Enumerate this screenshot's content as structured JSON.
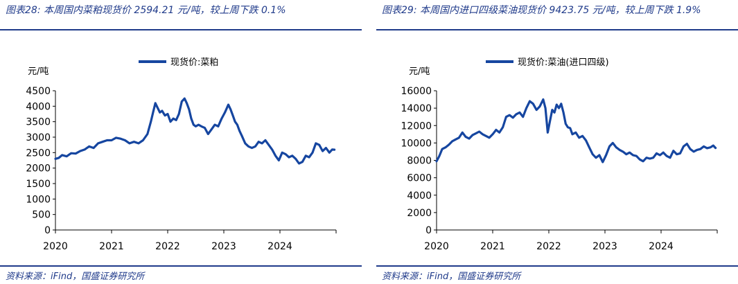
{
  "chart_data": [
    {
      "type": "line",
      "figure_title": "图表28: 本周国内菜粕现货价 2594.21 元/吨，较上周下跌 0.1%",
      "source": "资料来源：iFind，国盛证券研究所",
      "unit_label": "元/吨",
      "legend": [
        "现货价:菜粕"
      ],
      "line_color": "#1646a0",
      "x_ticks": [
        "2020",
        "2021",
        "2022",
        "2023",
        "2024"
      ],
      "xlim": [
        2020.0,
        2025.0
      ],
      "ylim": [
        0,
        4500
      ],
      "y_ticks": [
        "0",
        "500",
        "1000",
        "1500",
        "2000",
        "2500",
        "3000",
        "3500",
        "4000",
        "4500"
      ],
      "series": [
        {
          "name": "现货价:菜粕",
          "x": [
            2020.0,
            2020.06,
            2020.12,
            2020.2,
            2020.28,
            2020.36,
            2020.44,
            2020.52,
            2020.6,
            2020.68,
            2020.76,
            2020.84,
            2020.92,
            2021.0,
            2021.08,
            2021.16,
            2021.24,
            2021.32,
            2021.4,
            2021.48,
            2021.56,
            2021.64,
            2021.7,
            2021.74,
            2021.78,
            2021.82,
            2021.86,
            2021.9,
            2021.95,
            2022.0,
            2022.05,
            2022.1,
            2022.15,
            2022.2,
            2022.25,
            2022.3,
            2022.34,
            2022.38,
            2022.42,
            2022.46,
            2022.5,
            2022.55,
            2022.6,
            2022.66,
            2022.72,
            2022.78,
            2022.84,
            2022.9,
            2022.96,
            2023.02,
            2023.08,
            2023.12,
            2023.16,
            2023.2,
            2023.24,
            2023.28,
            2023.32,
            2023.38,
            2023.44,
            2023.5,
            2023.56,
            2023.62,
            2023.68,
            2023.74,
            2023.8,
            2023.86,
            2023.92,
            2023.98,
            2024.04,
            2024.1,
            2024.16,
            2024.22,
            2024.28,
            2024.34,
            2024.4,
            2024.46,
            2024.52,
            2024.58,
            2024.64,
            2024.7,
            2024.76,
            2024.82,
            2024.88,
            2024.93,
            2024.97
          ],
          "y": [
            2300,
            2330,
            2420,
            2380,
            2480,
            2470,
            2550,
            2600,
            2700,
            2650,
            2800,
            2850,
            2900,
            2900,
            2980,
            2950,
            2900,
            2800,
            2850,
            2800,
            2900,
            3100,
            3500,
            3800,
            4100,
            3950,
            3800,
            3850,
            3700,
            3750,
            3500,
            3600,
            3550,
            3750,
            4150,
            4250,
            4100,
            3900,
            3600,
            3400,
            3350,
            3400,
            3350,
            3300,
            3100,
            3250,
            3400,
            3350,
            3600,
            3800,
            4050,
            3900,
            3700,
            3500,
            3400,
            3200,
            3050,
            2800,
            2700,
            2650,
            2700,
            2850,
            2800,
            2900,
            2750,
            2600,
            2400,
            2250,
            2500,
            2450,
            2350,
            2400,
            2300,
            2150,
            2200,
            2400,
            2350,
            2500,
            2800,
            2750,
            2550,
            2650,
            2500,
            2600,
            2594
          ]
        }
      ]
    },
    {
      "type": "line",
      "figure_title": "图表29: 本周国内进口四级菜油现货价 9423.75 元/吨，较上周下跌 1.9%",
      "source": "资料来源：iFind，国盛证券研究所",
      "unit_label": "元/吨",
      "legend": [
        "现货价:菜油(进口四级)"
      ],
      "line_color": "#1646a0",
      "x_ticks": [
        "2020",
        "2021",
        "2022",
        "2023",
        "2024"
      ],
      "xlim": [
        2020.0,
        2025.0
      ],
      "ylim": [
        0,
        16000
      ],
      "y_ticks": [
        "0",
        "2000",
        "4000",
        "6000",
        "8000",
        "10000",
        "12000",
        "14000",
        "16000"
      ],
      "series": [
        {
          "name": "现货价:菜油(进口四级)",
          "x": [
            2020.0,
            2020.05,
            2020.1,
            2020.16,
            2020.22,
            2020.28,
            2020.34,
            2020.4,
            2020.46,
            2020.52,
            2020.58,
            2020.64,
            2020.7,
            2020.76,
            2020.82,
            2020.88,
            2020.94,
            2021.0,
            2021.06,
            2021.12,
            2021.18,
            2021.24,
            2021.3,
            2021.36,
            2021.42,
            2021.48,
            2021.54,
            2021.6,
            2021.66,
            2021.72,
            2021.78,
            2021.84,
            2021.9,
            2021.94,
            2021.98,
            2022.02,
            2022.06,
            2022.1,
            2022.14,
            2022.18,
            2022.22,
            2022.26,
            2022.3,
            2022.34,
            2022.38,
            2022.42,
            2022.48,
            2022.54,
            2022.6,
            2022.66,
            2022.72,
            2022.78,
            2022.84,
            2022.9,
            2022.96,
            2023.02,
            2023.08,
            2023.14,
            2023.2,
            2023.26,
            2023.32,
            2023.38,
            2023.44,
            2023.5,
            2023.56,
            2023.62,
            2023.68,
            2023.74,
            2023.8,
            2023.86,
            2023.92,
            2023.98,
            2024.04,
            2024.1,
            2024.16,
            2024.22,
            2024.28,
            2024.34,
            2024.4,
            2024.46,
            2024.52,
            2024.58,
            2024.64,
            2024.7,
            2024.76,
            2024.82,
            2024.88,
            2024.93,
            2024.97
          ],
          "y": [
            7900,
            8500,
            9300,
            9500,
            9800,
            10200,
            10400,
            10600,
            11200,
            10700,
            10500,
            10900,
            11100,
            11300,
            11000,
            10800,
            10600,
            11000,
            11500,
            11200,
            11800,
            13000,
            13200,
            12900,
            13300,
            13500,
            13000,
            14000,
            14800,
            14500,
            13800,
            14200,
            15000,
            14000,
            11200,
            12500,
            13800,
            13500,
            14400,
            14000,
            14500,
            13500,
            12200,
            11800,
            11700,
            11000,
            11200,
            10600,
            10800,
            10300,
            9500,
            8700,
            8300,
            8600,
            7800,
            8600,
            9600,
            10000,
            9500,
            9200,
            9000,
            8700,
            8900,
            8600,
            8500,
            8100,
            7900,
            8300,
            8200,
            8300,
            8800,
            8600,
            8900,
            8500,
            8300,
            9100,
            8700,
            8800,
            9600,
            9900,
            9300,
            9000,
            9200,
            9300,
            9600,
            9400,
            9500,
            9700,
            9424
          ]
        }
      ]
    }
  ]
}
